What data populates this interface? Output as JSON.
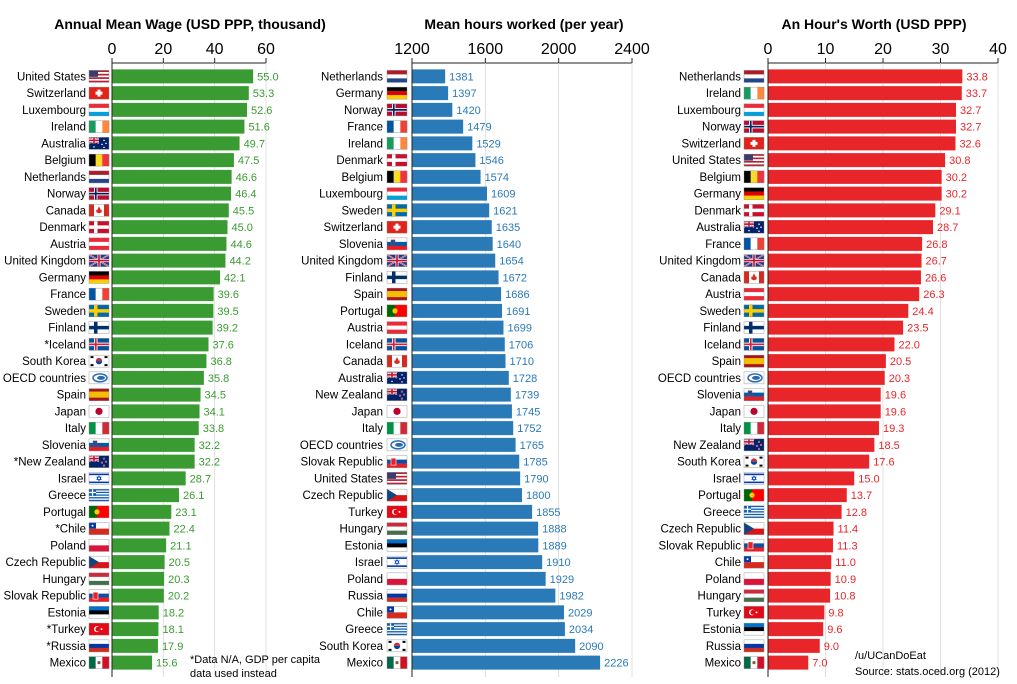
{
  "chart_data": [
    {
      "type": "bar",
      "title": "Annual Mean Wage (USD PPP, thousand)",
      "xlim": [
        0,
        60
      ],
      "ticks": [
        0,
        20,
        40,
        60
      ],
      "color": "#3a9b32",
      "categories": [
        "United States",
        "Switzerland",
        "Luxembourg",
        "Ireland",
        "Australia",
        "Belgium",
        "Netherlands",
        "Norway",
        "Canada",
        "Denmark",
        "Austria",
        "United Kingdom",
        "Germany",
        "France",
        "Sweden",
        "Finland",
        "*Iceland",
        "South Korea",
        "OECD countries",
        "Spain",
        "Japan",
        "Italy",
        "Slovenia",
        "*New Zealand",
        "Israel",
        "Greece",
        "Portugal",
        "*Chile",
        "Poland",
        "Czech Republic",
        "Hungary",
        "Slovak Republic",
        "Estonia",
        "*Turkey",
        "*Russia",
        "Mexico"
      ],
      "values": [
        55.0,
        53.3,
        52.6,
        51.6,
        49.7,
        47.5,
        46.6,
        46.4,
        45.5,
        45.0,
        44.6,
        44.2,
        42.1,
        39.6,
        39.5,
        39.2,
        37.6,
        36.8,
        35.8,
        34.5,
        34.1,
        33.8,
        32.2,
        32.2,
        28.7,
        26.1,
        23.1,
        22.4,
        21.1,
        20.5,
        20.3,
        20.2,
        18.2,
        18.1,
        17.9,
        15.6
      ],
      "value_labels": [
        "55.0",
        "53.3",
        "52.6",
        "51.6",
        "49.7",
        "47.5",
        "46.6",
        "46.4",
        "45.5",
        "45.0",
        "44.6",
        "44.2",
        "42.1",
        "39.6",
        "39.5",
        "39.2",
        "37.6",
        "36.8",
        "35.8",
        "34.5",
        "34.1",
        "33.8",
        "32.2",
        "32.2",
        "28.7",
        "26.1",
        "23.1",
        "22.4",
        "21.1",
        "20.5",
        "20.3",
        "20.2",
        "18.2",
        "18.1",
        "17.9",
        "15.6"
      ]
    },
    {
      "type": "bar",
      "title": "Mean hours worked (per year)",
      "xlim": [
        1200,
        2400
      ],
      "ticks": [
        1200,
        1600,
        2000,
        2400
      ],
      "color": "#2a7ab8",
      "categories": [
        "Netherlands",
        "Germany",
        "Norway",
        "France",
        "Ireland",
        "Denmark",
        "Belgium",
        "Luxembourg",
        "Sweden",
        "Switzerland",
        "Slovenia",
        "United Kingdom",
        "Finland",
        "Spain",
        "Portugal",
        "Austria",
        "Iceland",
        "Canada",
        "Australia",
        "New Zealand",
        "Japan",
        "Italy",
        "OECD countries",
        "Slovak Republic",
        "United States",
        "Czech Republic",
        "Turkey",
        "Hungary",
        "Estonia",
        "Israel",
        "Poland",
        "Russia",
        "Chile",
        "Greece",
        "South Korea",
        "Mexico"
      ],
      "values": [
        1381,
        1397,
        1420,
        1479,
        1529,
        1546,
        1574,
        1609,
        1621,
        1635,
        1640,
        1654,
        1672,
        1686,
        1691,
        1699,
        1706,
        1710,
        1728,
        1739,
        1745,
        1752,
        1765,
        1785,
        1790,
        1800,
        1855,
        1888,
        1889,
        1910,
        1929,
        1982,
        2029,
        2034,
        2090,
        2226
      ],
      "value_labels": [
        "1381",
        "1397",
        "1420",
        "1479",
        "1529",
        "1546",
        "1574",
        "1609",
        "1621",
        "1635",
        "1640",
        "1654",
        "1672",
        "1686",
        "1691",
        "1699",
        "1706",
        "1710",
        "1728",
        "1739",
        "1745",
        "1752",
        "1765",
        "1785",
        "1790",
        "1800",
        "1855",
        "1888",
        "1889",
        "1910",
        "1929",
        "1982",
        "2029",
        "2034",
        "2090",
        "2226"
      ]
    },
    {
      "type": "bar",
      "title": "An Hour's Worth (USD PPP)",
      "xlim": [
        0,
        40
      ],
      "ticks": [
        0,
        10,
        20,
        30,
        40
      ],
      "color": "#e8262a",
      "categories": [
        "Netherlands",
        "Ireland",
        "Luxembourg",
        "Norway",
        "Switzerland",
        "United States",
        "Belgium",
        "Germany",
        "Denmark",
        "Australia",
        "France",
        "United Kingdom",
        "Canada",
        "Austria",
        "Sweden",
        "Finland",
        "Iceland",
        "Spain",
        "OECD countries",
        "Slovenia",
        "Japan",
        "Italy",
        "New Zealand",
        "South Korea",
        "Israel",
        "Portugal",
        "Greece",
        "Czech Republic",
        "Slovak Republic",
        "Chile",
        "Poland",
        "Hungary",
        "Turkey",
        "Estonia",
        "Russia",
        "Mexico"
      ],
      "values": [
        33.8,
        33.7,
        32.7,
        32.7,
        32.6,
        30.8,
        30.2,
        30.2,
        29.1,
        28.7,
        26.8,
        26.7,
        26.6,
        26.3,
        24.4,
        23.5,
        22.0,
        20.5,
        20.3,
        19.6,
        19.6,
        19.3,
        18.5,
        17.6,
        15.0,
        13.7,
        12.8,
        11.4,
        11.3,
        11.0,
        10.9,
        10.8,
        9.8,
        9.6,
        9.0,
        7.0
      ],
      "value_labels": [
        "33.8",
        "33.7",
        "32.7",
        "32.7",
        "32.6",
        "30.8",
        "30.2",
        "30.2",
        "29.1",
        "28.7",
        "26.8",
        "26.7",
        "26.6",
        "26.3",
        "24.4",
        "23.5",
        "22.0",
        "20.5",
        "20.3",
        "19.6",
        "19.6",
        "19.3",
        "18.5",
        "17.6",
        "15.0",
        "13.7",
        "12.8",
        "11.4",
        "11.3",
        "11.0",
        "10.9",
        "10.8",
        "9.8",
        "9.6",
        "9.0",
        "7.0"
      ]
    }
  ],
  "notes": {
    "footnote_line1": "*Data N/A, GDP per capita",
    "footnote_line2": "data used instead",
    "credit": "/u/UCanDoEat",
    "source": "Source: stats.oced.org (2012)"
  },
  "flags": {
    "United States": "us-flag-icon",
    "Switzerland": "swiss-flag-icon",
    "Luxembourg": "luxembourg-flag-icon",
    "Ireland": "ireland-flag-icon",
    "Australia": "australia-flag-icon",
    "Belgium": "belgium-flag-icon",
    "Netherlands": "netherlands-flag-icon",
    "Norway": "norway-flag-icon",
    "Canada": "canada-flag-icon",
    "Denmark": "denmark-flag-icon",
    "Austria": "austria-flag-icon",
    "United Kingdom": "uk-flag-icon",
    "Germany": "germany-flag-icon",
    "France": "france-flag-icon",
    "Sweden": "sweden-flag-icon",
    "Finland": "finland-flag-icon",
    "Iceland": "iceland-flag-icon",
    "South Korea": "south-korea-flag-icon",
    "OECD countries": "oecd-logo-icon",
    "Spain": "spain-flag-icon",
    "Japan": "japan-flag-icon",
    "Italy": "italy-flag-icon",
    "Slovenia": "slovenia-flag-icon",
    "New Zealand": "new-zealand-flag-icon",
    "Israel": "israel-flag-icon",
    "Greece": "greece-flag-icon",
    "Portugal": "portugal-flag-icon",
    "Chile": "chile-flag-icon",
    "Poland": "poland-flag-icon",
    "Czech Republic": "czech-flag-icon",
    "Hungary": "hungary-flag-icon",
    "Slovak Republic": "slovakia-flag-icon",
    "Estonia": "estonia-flag-icon",
    "Turkey": "turkey-flag-icon",
    "Russia": "russia-flag-icon",
    "Mexico": "mexico-flag-icon"
  }
}
